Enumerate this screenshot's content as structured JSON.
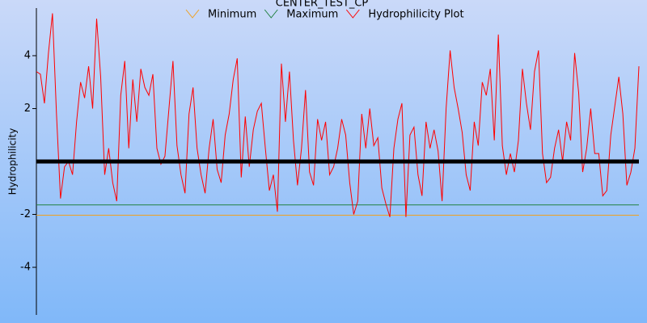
{
  "chart_data": {
    "type": "line",
    "title": "CENTER_TEST_CP",
    "ylabel": "Hydrophilicity",
    "ylim": [
      -5.8,
      5.8
    ],
    "yticks": [
      -4,
      -2,
      2,
      4
    ],
    "series": [
      {
        "name": "Minimum",
        "color": "#f0a020",
        "value": -2.03
      },
      {
        "name": "Maximum",
        "color": "#208040",
        "value": -1.64
      },
      {
        "name": "Hydrophilicity Plot",
        "color": "#ff0000",
        "values": [
          3.4,
          3.3,
          2.2,
          4.1,
          5.6,
          1.8,
          -1.4,
          -0.2,
          0,
          -0.5,
          1.5,
          3,
          2.4,
          3.6,
          2.0,
          5.4,
          3.2,
          -0.5,
          0.5,
          -0.8,
          -1.5,
          2.5,
          3.8,
          0.5,
          3.1,
          1.5,
          3.5,
          2.8,
          2.5,
          3.3,
          0.5,
          -0.1,
          0.2,
          2,
          3.8,
          0.6,
          -0.5,
          -1.2,
          1.8,
          2.8,
          0.5,
          -0.5,
          -1.2,
          0.5,
          1.6,
          -0.3,
          -0.8,
          1,
          1.8,
          3.1,
          3.9,
          -0.6,
          1.7,
          -0.2,
          1.2,
          1.9,
          2.2,
          0.5,
          -1.1,
          -0.5,
          -1.9,
          3.7,
          1.5,
          3.4,
          0.8,
          -0.9,
          0.5,
          2.7,
          -0.4,
          -0.9,
          1.6,
          0.8,
          1.5,
          -0.5,
          -0.2,
          0.5,
          1.6,
          1.0,
          -0.8,
          -2.0,
          -1.5,
          1.8,
          0.5,
          2.0,
          0.6,
          0.9,
          -1.0,
          -1.6,
          -2.1,
          0.5,
          1.6,
          2.2,
          -2.1,
          1.0,
          1.3,
          -0.5,
          -1.3,
          1.5,
          0.5,
          1.2,
          0.4,
          -1.5,
          2.0,
          4.2,
          2.8,
          2.0,
          1.1,
          -0.5,
          -1.1,
          1.5,
          0.6,
          3.0,
          2.5,
          3.5,
          0.8,
          4.8,
          0.6,
          -0.5,
          0.3,
          -0.4,
          0.8,
          3.5,
          2.2,
          1.2,
          3.4,
          4.2,
          0.3,
          -0.8,
          -0.6,
          0.5,
          1.2,
          0,
          1.5,
          0.8,
          4.1,
          2.6,
          -0.4,
          0.5,
          2.0,
          0.3,
          0.3,
          -1.3,
          -1.1,
          1.0,
          2.1,
          3.2,
          1.8,
          -0.9,
          -0.4,
          0.5,
          3.6
        ]
      }
    ]
  }
}
